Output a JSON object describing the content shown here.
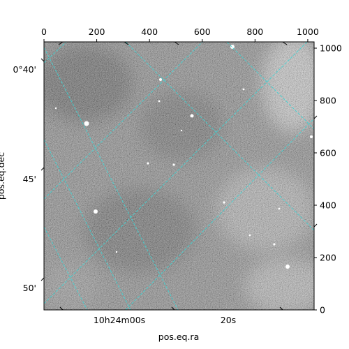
{
  "chart_data": {
    "type": "heatmap",
    "title": "",
    "colormap": "gray",
    "xlabel": "pos.eq.ra",
    "ylabel": "pos.eq.dec",
    "pixel_axes": {
      "x_range": [
        0,
        1024
      ],
      "y_range": [
        0,
        1024
      ],
      "top_ticks": [
        0,
        200,
        400,
        600,
        800,
        1000
      ],
      "right_ticks": [
        0,
        200,
        400,
        600,
        800,
        1000
      ]
    },
    "world_axes": {
      "ra_ticks": [
        "10h24m00s",
        "20s"
      ],
      "dec_ticks": [
        "0°40'",
        "45'",
        "50'"
      ]
    },
    "grid": true,
    "grid_color": "#40d4d4",
    "frame_color": "#000000",
    "background_color": "#ffffff"
  }
}
